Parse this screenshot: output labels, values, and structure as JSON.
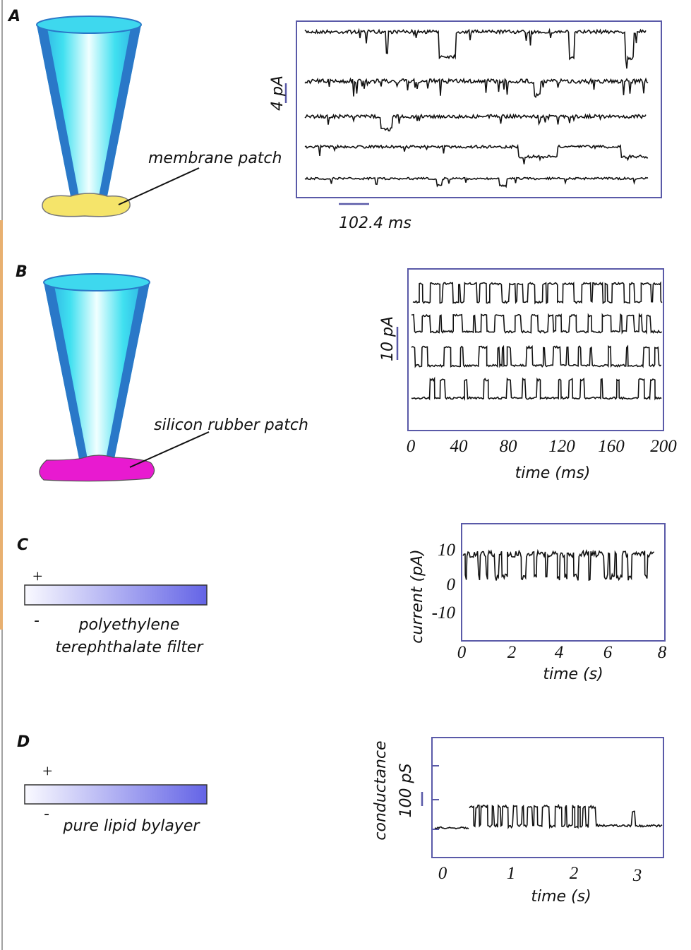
{
  "panels": [
    {
      "label": "A",
      "patch_label": "membrane patch",
      "scale_y": "4 pA",
      "scale_x": "102.4 ms"
    },
    {
      "label": "B",
      "patch_label": "silicon rubber patch",
      "scale_y": "10 pA",
      "xticks": [
        0,
        40,
        80,
        120,
        160,
        200
      ],
      "xlabel": "time (ms)"
    },
    {
      "label": "C",
      "plus": "+",
      "minus": "-",
      "filter_label": [
        "polyethylene",
        "terephthalate filter"
      ],
      "ylabel": "current (pA)",
      "yticks": [
        10,
        0,
        -10
      ],
      "xticks": [
        0,
        2,
        4,
        6,
        8
      ],
      "xlabel": "time (s)"
    },
    {
      "label": "D",
      "plus": "+",
      "minus": "-",
      "filter_label": "pure lipid bylayer",
      "ylabel": "conductance",
      "scale_y": "100 pS",
      "xticks": [
        0,
        1,
        2,
        3
      ],
      "xlabel": "time (s)"
    }
  ]
}
